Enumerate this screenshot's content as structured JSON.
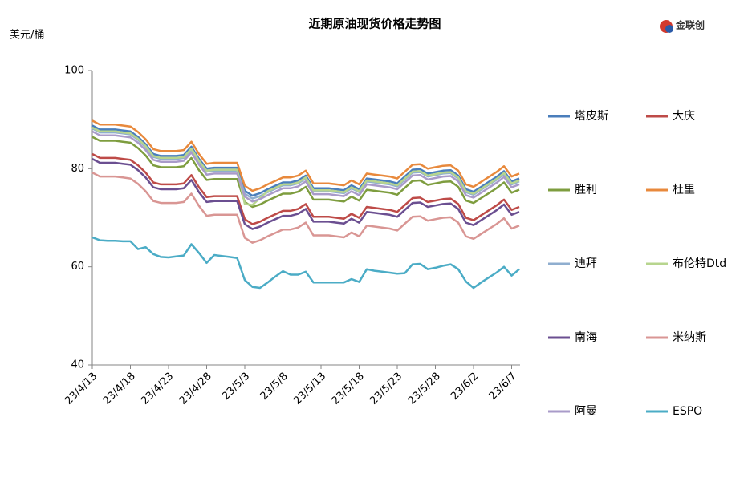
{
  "chart_data": {
    "type": "line",
    "title": "近期原油现货价格走势图",
    "y_label": "美元/桶",
    "logo": "金联创",
    "categories": [
      "23/4/13",
      null,
      null,
      null,
      null,
      "23/4/18",
      null,
      null,
      null,
      null,
      "23/4/23",
      null,
      null,
      null,
      null,
      "23/4/28",
      null,
      null,
      null,
      null,
      "23/5/3",
      null,
      null,
      null,
      null,
      "23/5/8",
      null,
      null,
      null,
      null,
      "23/5/13",
      null,
      null,
      null,
      null,
      "23/5/18",
      null,
      null,
      null,
      null,
      "23/5/23",
      null,
      null,
      null,
      null,
      "23/5/28",
      null,
      null,
      null,
      null,
      "23/6/2",
      null,
      null,
      null,
      null,
      "23/6/7",
      null
    ],
    "ylim": [
      40,
      100
    ],
    "yticks": [
      40,
      60,
      80,
      100
    ],
    "grid": false,
    "legend": "right",
    "series": [
      {
        "name": "塔皮斯",
        "color": "#4a7ebb",
        "values": [
          88.8,
          88.0,
          88.0,
          88.0,
          87.8,
          87.6,
          86.5,
          85.0,
          83.0,
          82.6,
          82.6,
          82.6,
          82.8,
          84.5,
          82.0,
          80.0,
          80.2,
          80.2,
          80.2,
          80.2,
          75.5,
          74.5,
          75.0,
          75.8,
          76.5,
          77.2,
          77.2,
          77.6,
          78.6,
          76.0,
          76.0,
          76.0,
          75.8,
          75.6,
          76.6,
          75.8,
          78.0,
          77.8,
          77.6,
          77.4,
          77.0,
          78.4,
          79.8,
          79.9,
          79.0,
          79.3,
          79.6,
          79.7,
          78.6,
          75.8,
          75.3,
          76.3,
          77.3,
          78.3,
          79.5,
          77.4,
          78.0
        ]
      },
      {
        "name": "大庆",
        "color": "#be4b48",
        "values": [
          83.0,
          82.2,
          82.2,
          82.2,
          82.0,
          81.8,
          80.7,
          79.2,
          77.2,
          76.8,
          76.8,
          76.8,
          77.0,
          78.7,
          76.2,
          74.2,
          74.4,
          74.4,
          74.4,
          74.4,
          69.7,
          68.7,
          69.2,
          70.0,
          70.7,
          71.4,
          71.4,
          71.8,
          72.8,
          70.2,
          70.2,
          70.2,
          70.0,
          69.8,
          70.8,
          70.0,
          72.2,
          72.0,
          71.8,
          71.6,
          71.2,
          72.6,
          74.0,
          74.1,
          73.2,
          73.5,
          73.8,
          73.9,
          72.8,
          70.0,
          69.5,
          70.5,
          71.5,
          72.5,
          73.7,
          71.6,
          72.2
        ]
      },
      {
        "name": "胜利",
        "color": "#7e9d3f",
        "values": [
          86.5,
          85.7,
          85.7,
          85.7,
          85.5,
          85.3,
          84.2,
          82.7,
          80.7,
          80.3,
          80.3,
          80.3,
          80.5,
          82.2,
          79.7,
          77.7,
          77.9,
          77.9,
          77.9,
          77.9,
          73.2,
          72.2,
          72.7,
          73.5,
          74.2,
          74.9,
          74.9,
          75.3,
          76.3,
          73.7,
          73.7,
          73.7,
          73.5,
          73.3,
          74.3,
          73.5,
          75.7,
          75.5,
          75.3,
          75.1,
          74.7,
          76.1,
          77.5,
          77.6,
          76.7,
          77.0,
          77.3,
          77.4,
          76.3,
          73.5,
          73.0,
          74.0,
          75.0,
          76.0,
          77.2,
          75.1,
          75.7
        ]
      },
      {
        "name": "杜里",
        "color": "#e8893c",
        "values": [
          89.8,
          89.0,
          89.0,
          89.0,
          88.8,
          88.6,
          87.5,
          86.0,
          84.0,
          83.6,
          83.6,
          83.6,
          83.8,
          85.5,
          83.0,
          81.0,
          81.2,
          81.2,
          81.2,
          81.2,
          76.5,
          75.5,
          76.0,
          76.8,
          77.5,
          78.2,
          78.2,
          78.6,
          79.6,
          77.0,
          77.0,
          77.0,
          76.8,
          76.6,
          77.6,
          76.8,
          79.0,
          78.8,
          78.6,
          78.4,
          78.0,
          79.4,
          80.8,
          80.9,
          80.0,
          80.3,
          80.6,
          80.7,
          79.6,
          76.8,
          76.3,
          77.3,
          78.3,
          79.3,
          80.5,
          78.4,
          79.0
        ]
      },
      {
        "name": "迪拜",
        "color": "#8faecf",
        "values": [
          88.2,
          87.4,
          87.4,
          87.4,
          87.2,
          87.0,
          85.9,
          84.4,
          82.4,
          82.0,
          82.0,
          82.0,
          82.2,
          83.9,
          81.4,
          79.4,
          79.6,
          79.6,
          79.6,
          79.6,
          74.9,
          73.9,
          74.4,
          75.2,
          75.9,
          76.6,
          76.6,
          77.0,
          78.0,
          75.4,
          75.4,
          75.4,
          75.2,
          75.0,
          76.0,
          75.2,
          77.4,
          77.2,
          77.0,
          76.8,
          76.4,
          77.8,
          79.2,
          79.3,
          78.4,
          78.7,
          79.0,
          79.1,
          78.0,
          75.2,
          74.7,
          75.7,
          76.7,
          77.7,
          78.9,
          76.8,
          77.4
        ]
      },
      {
        "name": "布伦特Dtd",
        "color": "#b7d58e",
        "values": [
          88.4,
          87.6,
          87.6,
          87.6,
          87.4,
          87.2,
          86.1,
          84.6,
          82.6,
          82.2,
          82.2,
          82.2,
          82.4,
          84.1,
          81.6,
          79.6,
          79.8,
          79.8,
          79.8,
          79.8,
          72.8,
          72.6,
          74.0,
          75.4,
          76.1,
          76.8,
          76.8,
          77.2,
          78.2,
          75.6,
          75.6,
          75.6,
          75.4,
          75.2,
          76.2,
          75.4,
          77.6,
          77.4,
          77.2,
          77.0,
          76.6,
          78.0,
          79.4,
          79.5,
          78.6,
          78.9,
          79.2,
          79.3,
          78.2,
          75.4,
          74.9,
          75.9,
          76.9,
          77.9,
          79.1,
          77.0,
          77.6
        ]
      },
      {
        "name": "南海",
        "color": "#6b4f91",
        "values": [
          82.0,
          81.2,
          81.2,
          81.2,
          81.0,
          80.8,
          79.7,
          78.2,
          76.2,
          75.8,
          75.8,
          75.8,
          76.0,
          77.7,
          75.2,
          73.2,
          73.4,
          73.4,
          73.4,
          73.4,
          68.7,
          67.7,
          68.2,
          69.0,
          69.7,
          70.4,
          70.4,
          70.8,
          71.8,
          69.2,
          69.2,
          69.2,
          69.0,
          68.8,
          69.8,
          69.0,
          71.2,
          71.0,
          70.8,
          70.6,
          70.2,
          71.6,
          73.0,
          73.1,
          72.2,
          72.5,
          72.8,
          72.9,
          71.8,
          69.0,
          68.5,
          69.5,
          70.5,
          71.5,
          72.7,
          70.6,
          71.2
        ]
      },
      {
        "name": "米纳斯",
        "color": "#d99694",
        "values": [
          79.2,
          78.4,
          78.4,
          78.4,
          78.2,
          78.0,
          76.9,
          75.4,
          73.4,
          73.0,
          73.0,
          73.0,
          73.2,
          74.9,
          72.4,
          70.4,
          70.6,
          70.6,
          70.6,
          70.6,
          65.9,
          64.9,
          65.4,
          66.2,
          66.9,
          67.6,
          67.6,
          68.0,
          69.0,
          66.4,
          66.4,
          66.4,
          66.2,
          66.0,
          67.0,
          66.2,
          68.4,
          68.2,
          68.0,
          67.8,
          67.4,
          68.8,
          70.2,
          70.3,
          69.4,
          69.7,
          70.0,
          70.1,
          69.0,
          66.2,
          65.7,
          66.7,
          67.7,
          68.7,
          69.9,
          67.8,
          68.4
        ]
      },
      {
        "name": "阿曼",
        "color": "#a99bc9",
        "values": [
          87.6,
          86.8,
          86.8,
          86.8,
          86.6,
          86.4,
          85.3,
          83.8,
          81.8,
          81.4,
          81.4,
          81.4,
          81.6,
          83.3,
          80.8,
          78.8,
          79.0,
          79.0,
          79.0,
          79.0,
          74.3,
          73.3,
          73.8,
          74.6,
          75.3,
          76.0,
          76.0,
          76.4,
          77.4,
          74.8,
          74.8,
          74.8,
          74.6,
          74.4,
          75.4,
          74.6,
          76.8,
          76.6,
          76.4,
          76.2,
          75.8,
          77.2,
          78.6,
          78.7,
          77.8,
          78.1,
          78.4,
          78.5,
          77.4,
          74.6,
          74.1,
          75.1,
          76.1,
          77.1,
          78.3,
          76.2,
          76.8
        ]
      },
      {
        "name": "ESPO",
        "color": "#4bacc6",
        "values": [
          66.0,
          65.4,
          65.3,
          65.3,
          65.2,
          65.2,
          63.6,
          64.0,
          62.6,
          62.0,
          61.9,
          62.1,
          62.3,
          64.6,
          62.8,
          60.8,
          62.4,
          62.2,
          62.0,
          61.8,
          57.3,
          55.9,
          55.7,
          56.8,
          58.0,
          59.1,
          58.4,
          58.4,
          59.0,
          56.8,
          56.8,
          56.8,
          56.8,
          56.8,
          57.5,
          56.9,
          59.5,
          59.2,
          59.0,
          58.8,
          58.6,
          58.7,
          60.5,
          60.6,
          59.5,
          59.8,
          60.2,
          60.5,
          59.5,
          57.0,
          55.7,
          56.8,
          57.8,
          58.8,
          60.0,
          58.2,
          59.5
        ]
      }
    ]
  }
}
